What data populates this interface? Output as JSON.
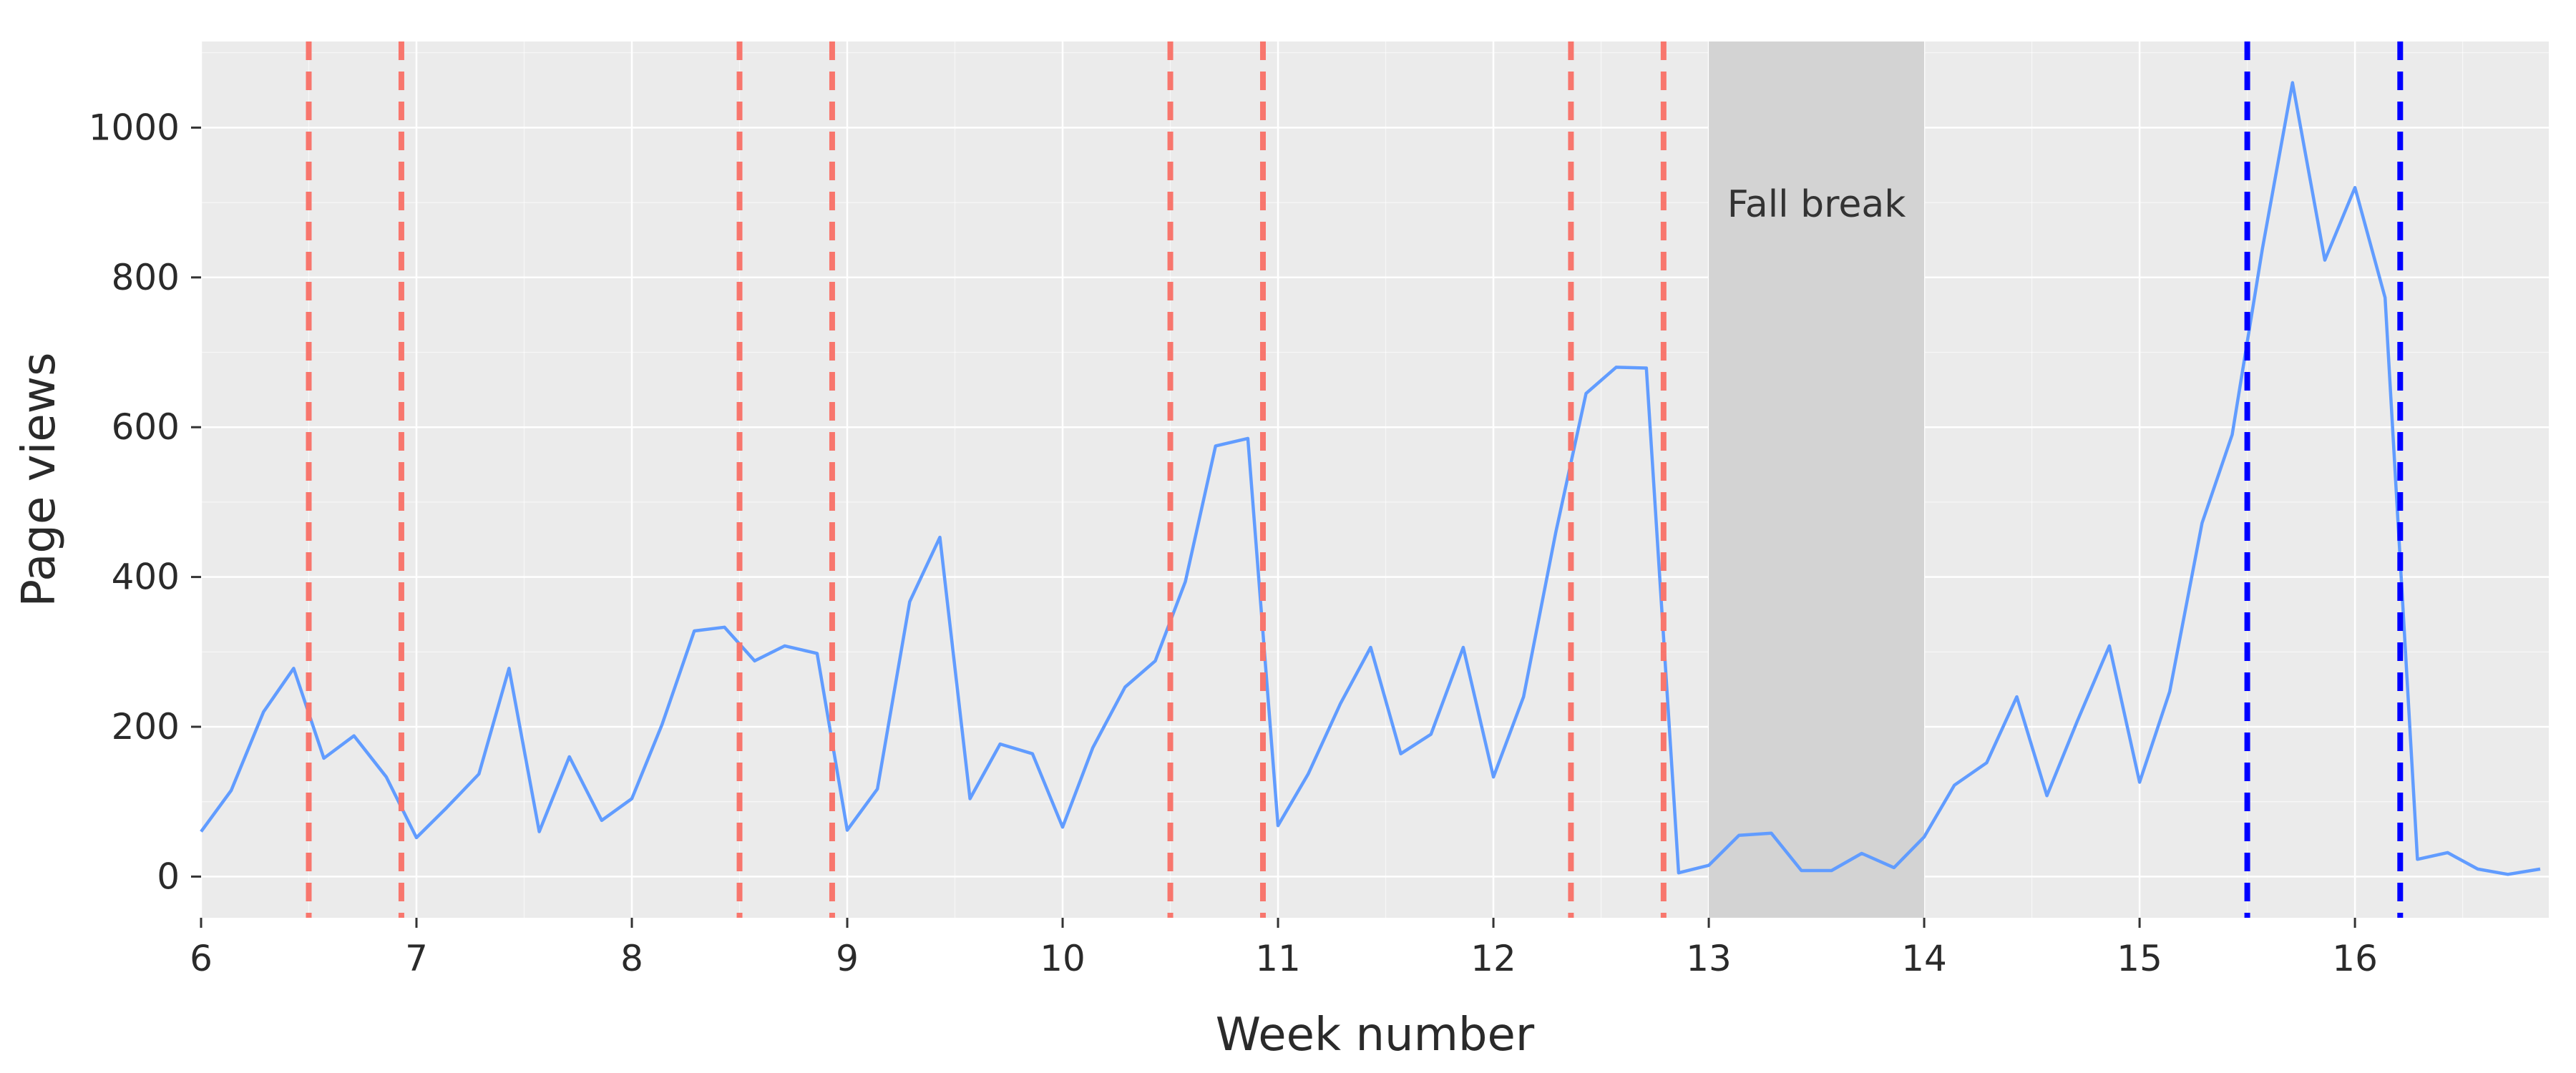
{
  "colors": {
    "panel_bg": "#ebebeb",
    "grid": "#ffffff",
    "line": "#619cff",
    "exam_marker": "#f8766d",
    "final_marker": "#0000ff",
    "break_shade": "#d3d3d3",
    "text": "#2a2a2a"
  },
  "chart_data": {
    "type": "line",
    "title": "",
    "xlabel": "Week number",
    "ylabel": "Page views",
    "xlim": [
      6,
      16.9
    ],
    "ylim": [
      -55,
      1115
    ],
    "x_ticks": [
      6,
      7,
      8,
      9,
      10,
      11,
      12,
      13,
      14,
      15,
      16
    ],
    "y_ticks": [
      0,
      200,
      400,
      600,
      800,
      1000
    ],
    "grid": true,
    "legend": "none",
    "series": [
      {
        "x": [
          6.0,
          6.14,
          6.29,
          6.43,
          6.57,
          6.71,
          6.86,
          7.0,
          7.14,
          7.29,
          7.43,
          7.57,
          7.71,
          7.86,
          8.0,
          8.14,
          8.29,
          8.43,
          8.57,
          8.71,
          8.86,
          9.0,
          9.14,
          9.29,
          9.43,
          9.57,
          9.71,
          9.86,
          10.0,
          10.14,
          10.29,
          10.43,
          10.57,
          10.71,
          10.86,
          11.0,
          11.14,
          11.29,
          11.43,
          11.57,
          11.71,
          11.86,
          12.0,
          12.14,
          12.29,
          12.43,
          12.57,
          12.71,
          12.86,
          13.0,
          13.14,
          13.29,
          13.43,
          13.57,
          13.71,
          13.86,
          14.0,
          14.14,
          14.29,
          14.43,
          14.57,
          14.71,
          14.86,
          15.0,
          15.14,
          15.29,
          15.43,
          15.57,
          15.71,
          15.86,
          16.0,
          16.14,
          16.29,
          16.43,
          16.57,
          16.71,
          16.86
        ],
        "y": [
          60,
          115,
          220,
          278,
          158,
          188,
          133,
          52,
          92,
          137,
          278,
          60,
          160,
          75,
          104,
          203,
          328,
          333,
          288,
          308,
          298,
          62,
          117,
          367,
          453,
          104,
          177,
          164,
          66,
          172,
          253,
          288,
          394,
          575,
          585,
          68,
          137,
          231,
          306,
          164,
          190,
          306,
          133,
          240,
          460,
          645,
          680,
          679,
          5,
          15,
          55,
          58,
          8,
          8,
          31,
          12,
          53,
          122,
          152,
          240,
          108,
          207,
          308,
          126,
          247,
          472,
          590,
          838,
          1060,
          823,
          920,
          773,
          23,
          32,
          10,
          3,
          10
        ]
      }
    ],
    "vlines_red": [
      6.5,
      6.93,
      8.5,
      8.93,
      10.5,
      10.93,
      12.36,
      12.79
    ],
    "vlines_blue": [
      15.5,
      16.21
    ],
    "shaded_region": {
      "x": [
        13,
        14
      ],
      "label": "Fall break"
    }
  }
}
